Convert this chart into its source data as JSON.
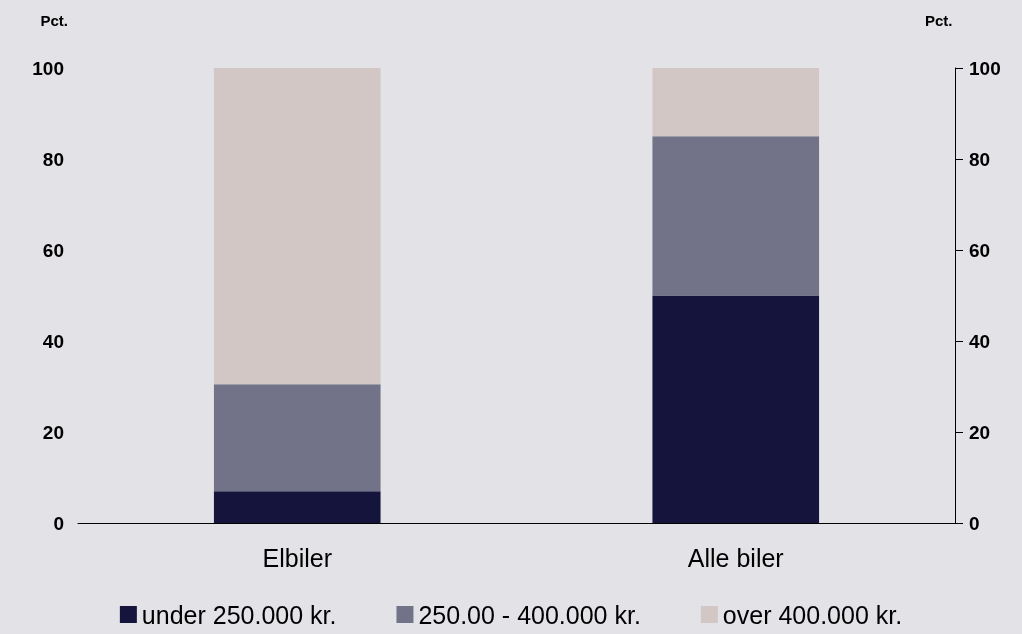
{
  "chart_data": {
    "type": "bar",
    "stacked": true,
    "ylabel": "Pct.",
    "y2label": "Pct.",
    "categories": [
      "Elbiler",
      "Alle biler"
    ],
    "series": [
      {
        "name": "under 250.000 kr.",
        "color": "#14143c",
        "values": [
          7,
          50
        ]
      },
      {
        "name": "250.00 - 400.000 kr.",
        "color": "#727389",
        "values": [
          23.5,
          35
        ]
      },
      {
        "name": "over 400.000 kr.",
        "color": "#d3c7c5",
        "values": [
          69.5,
          15
        ]
      }
    ],
    "ylim": [
      0,
      100
    ],
    "yticks": [
      0,
      20,
      40,
      60,
      80,
      100
    ],
    "y2lim": [
      0,
      100
    ],
    "y2ticks": [
      0,
      20,
      40,
      60,
      80,
      100
    ],
    "grid": false,
    "legend": "bottom"
  }
}
